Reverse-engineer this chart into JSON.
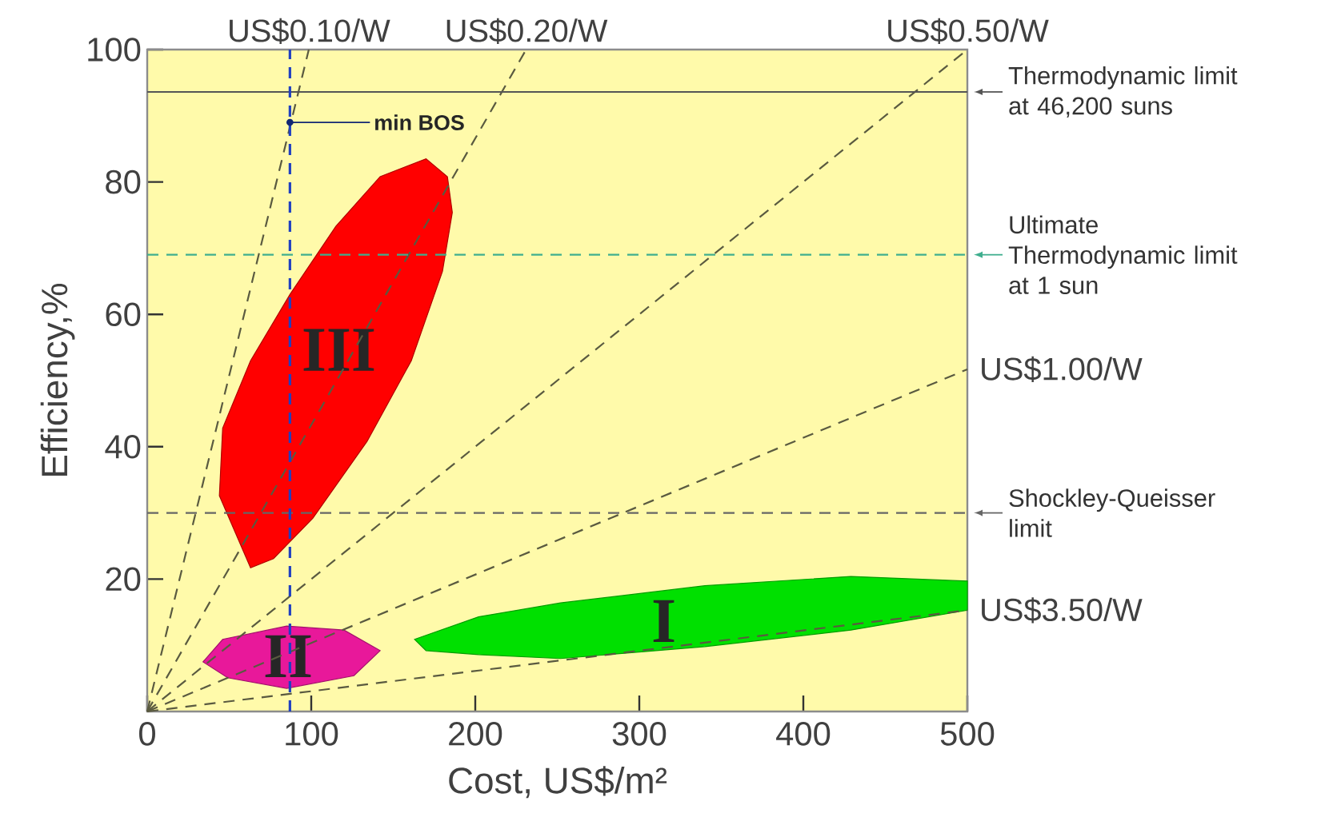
{
  "chart_data": {
    "type": "line",
    "xlabel": "Cost, US$/m²",
    "ylabel": "Efficiency,%",
    "xlim": [
      0,
      500
    ],
    "ylim": [
      0,
      100
    ],
    "xticks": [
      0,
      100,
      200,
      300,
      400,
      500
    ],
    "yticks": [
      20,
      40,
      60,
      80,
      100
    ],
    "series": [
      {
        "type": "area",
        "name": "III",
        "color": "#ff0000",
        "x": [
          63,
          44,
          46,
          63,
          87,
          115,
          142,
          170,
          183,
          186,
          180,
          161,
          134,
          101,
          77
        ],
        "values": [
          21.7,
          32.6,
          42.8,
          53,
          63,
          73.3,
          80.8,
          83.5,
          80.8,
          75.4,
          66.5,
          53,
          40.8,
          29.2,
          23.1
        ]
      },
      {
        "type": "area",
        "name": "II",
        "color": "#e8189a",
        "x": [
          34,
          46,
          85,
          120,
          142,
          126,
          85,
          49
        ],
        "values": [
          7.5,
          10.9,
          12.9,
          12.3,
          9.2,
          5.4,
          3.5,
          5.1
        ]
      },
      {
        "type": "area",
        "name": "I",
        "color": "#00e000",
        "x": [
          163,
          202,
          252,
          340,
          429,
          500,
          500,
          429,
          340,
          252,
          202,
          170
        ],
        "values": [
          10.9,
          14.3,
          16.4,
          19,
          20.4,
          19.7,
          15.3,
          12.3,
          9.8,
          8,
          8.6,
          9.2
        ]
      },
      {
        "name": "US$0.10/W",
        "color": "#5a5a40",
        "line_style": "dashed",
        "x": [
          0,
          98.5
        ],
        "values": [
          0,
          100
        ]
      },
      {
        "name": "US$0.20/W",
        "color": "#5a5a40",
        "line_style": "dashed",
        "x": [
          0,
          231
        ],
        "values": [
          0,
          100
        ]
      },
      {
        "name": "US$0.50/W",
        "color": "#5a5a40",
        "line_style": "dashed",
        "x": [
          0,
          500
        ],
        "values": [
          0,
          100
        ]
      },
      {
        "name": "US$1.00/W",
        "color": "#5a5a40",
        "line_style": "dashed",
        "x": [
          0,
          500
        ],
        "values": [
          0,
          51.7
        ]
      },
      {
        "name": "US$3.50/W",
        "color": "#5a5a40",
        "line_style": "dashed",
        "x": [
          0,
          500
        ],
        "values": [
          0,
          15.3
        ]
      }
    ],
    "ref_lines": [
      {
        "axis": "y",
        "value": 93.6,
        "label": "Thermodynamic limit at 46,200 suns",
        "color": "#555555",
        "line_style": "solid"
      },
      {
        "axis": "y",
        "value": 69,
        "label": "Ultimate Thermodynamic limit at 1 sun",
        "color": "#3fae8e",
        "line_style": "dashed"
      },
      {
        "axis": "y",
        "value": 30,
        "label": "Shockley-Queisser limit",
        "color": "#666666",
        "line_style": "dashed"
      },
      {
        "axis": "x",
        "value": 87,
        "label": "min BOS",
        "color": "#2040c0",
        "line_style": "dashed"
      }
    ]
  }
}
